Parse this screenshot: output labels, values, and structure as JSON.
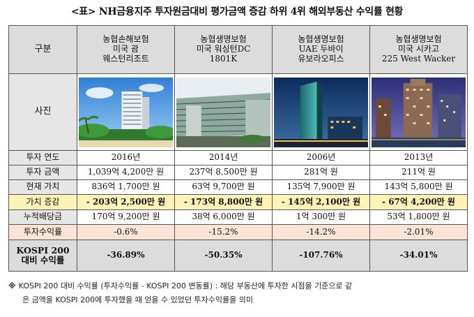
{
  "title": "<표> NH금융지주 투자원금대비 평가금액 증감 하위 4위 해외부동산 수익률 현황",
  "header": {
    "label": "구분",
    "columns": [
      {
        "company": "농협손해보험",
        "line2": "미국 괌",
        "line3": "웨스턴리조트"
      },
      {
        "company": "농협생명보험",
        "line2": "미국 워싱턴DC",
        "line3": "1801K"
      },
      {
        "company": "농협생명보험",
        "line2": "UAE 두바이",
        "line3": "유보라오피스"
      },
      {
        "company": "농협생명보험",
        "line2": "미국 시카고",
        "line3": "225 West Wacker"
      }
    ]
  },
  "photo_row_label": "사진",
  "photos": [
    "resort-tower-photo",
    "office-building-photo",
    "glass-tower-photo",
    "skyscraper-photo"
  ],
  "rows": [
    {
      "label": "투자 연도",
      "values": [
        "2016년",
        "2014년",
        "2006년",
        "2013년"
      ],
      "style": "data"
    },
    {
      "label": "투자 금액",
      "values": [
        "1,039억 4,200만 원",
        "237억 8,500만 원",
        "281억 원",
        "211억 원"
      ],
      "style": "data"
    },
    {
      "label": "현재 가치",
      "values": [
        "836억 1,700만 원",
        "63억 9,700만 원",
        "135억 7,900만 원",
        "143억 5,800만 원"
      ],
      "style": "data"
    },
    {
      "label": "가치 증감",
      "values": [
        "- 203억 2,500만 원",
        "- 173억 8,800만 원",
        "- 145억 2,100만 원",
        "- 67억 4,200만 원"
      ],
      "style": "gain"
    },
    {
      "label": "누적배당금",
      "values": [
        "170억 9,200만 원",
        "38억 6,000만 원",
        "1억 300만 원",
        "53억 1,800만 원"
      ],
      "style": "data"
    },
    {
      "label": "투자수익률",
      "values": [
        "-0.6%",
        "-15.2%",
        "-14.2%",
        "-2.01%"
      ],
      "style": "ret"
    }
  ],
  "kospi_row": {
    "label_line1": "KOSPI 200",
    "label_line2": "대비 수익률",
    "values": [
      "-36.89%",
      "-50.35%",
      "-107.76%",
      "-34.01%"
    ]
  },
  "note": {
    "mark": "※",
    "line1": "KOSPI 200 대비 수익률 (투자수익률 - KOSPI 200 변동률) : 해당 부동산에 투자한 시점을 기준으로 같",
    "line2": "은 금액을 KOSPI 200에 투자했을 때 얻을 수 있었던 투자수익률을 의미"
  }
}
